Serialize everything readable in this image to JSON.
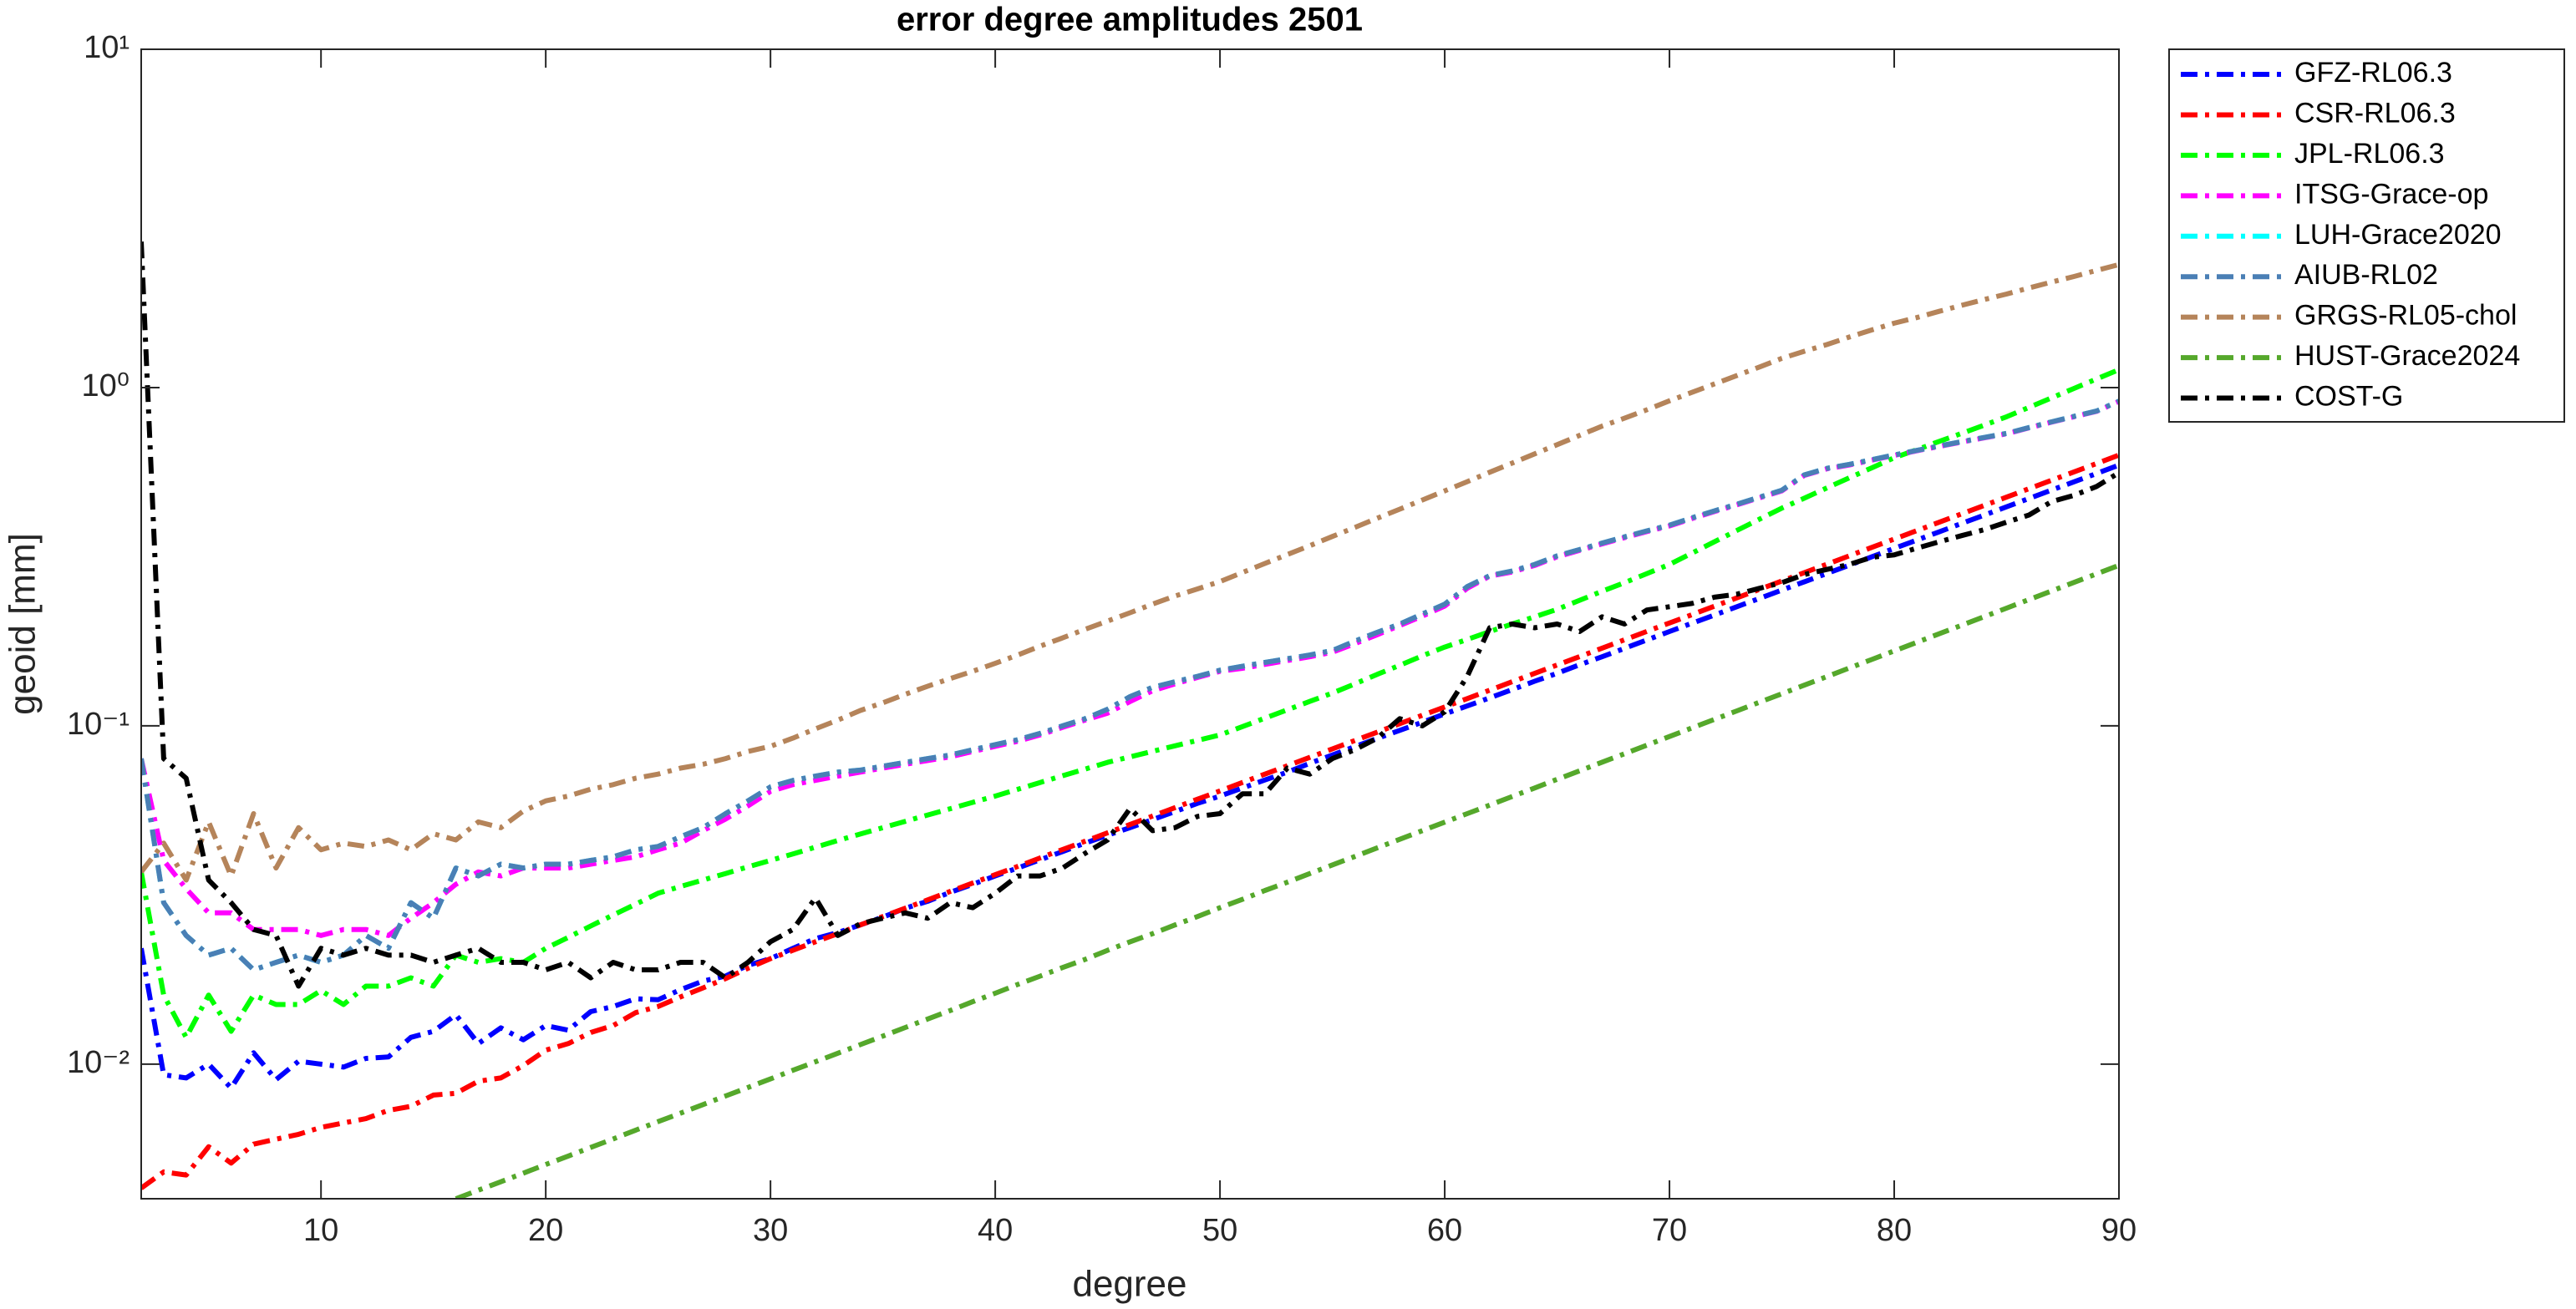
{
  "chart_data": {
    "type": "line",
    "title": "error degree amplitudes 2501",
    "xlabel": "degree",
    "ylabel": "geoid [mm]",
    "log_y": true,
    "legend": "northeastoutside",
    "xlim": [
      2,
      90
    ],
    "ylim": [
      0.004,
      10
    ],
    "xticks": [
      10,
      20,
      30,
      40,
      50,
      60,
      70,
      80,
      90
    ],
    "yticks": [
      {
        "value": 0.01,
        "label": "10⁻²"
      },
      {
        "value": 0.1,
        "label": "10⁻¹"
      },
      {
        "value": 1,
        "label": "10⁰"
      },
      {
        "value": 10,
        "label": "10¹"
      }
    ],
    "x": [
      2,
      3,
      4,
      5,
      6,
      7,
      8,
      9,
      10,
      11,
      12,
      13,
      14,
      15,
      16,
      17,
      18,
      19,
      20,
      21,
      22,
      23,
      24,
      25,
      26,
      27,
      28,
      29,
      30,
      31,
      32,
      33,
      34,
      35,
      36,
      37,
      38,
      39,
      40,
      41,
      42,
      43,
      44,
      45,
      46,
      47,
      48,
      49,
      50,
      51,
      52,
      53,
      54,
      55,
      56,
      57,
      58,
      59,
      60,
      61,
      62,
      63,
      64,
      65,
      66,
      67,
      68,
      69,
      70,
      71,
      72,
      73,
      74,
      75,
      76,
      77,
      78,
      79,
      80,
      81,
      82,
      83,
      84,
      85,
      86,
      87,
      88,
      89,
      90
    ],
    "series": [
      {
        "name": "GFZ-RL06.3",
        "color": "#0000ff",
        "values": [
          0.022,
          0.0093,
          0.0091,
          0.01,
          0.0085,
          0.0108,
          0.009,
          0.0102,
          0.01,
          0.0098,
          0.0104,
          0.0105,
          0.012,
          0.0125,
          0.014,
          0.0115,
          0.0128,
          0.0118,
          0.013,
          0.0126,
          0.0143,
          0.0148,
          0.0156,
          0.0155,
          0.0166,
          0.0176,
          0.0182,
          0.0196,
          0.0205,
          0.022,
          0.0235,
          0.0245,
          0.0258,
          0.0272,
          0.0289,
          0.0303,
          0.0322,
          0.034,
          0.036,
          0.038,
          0.0402,
          0.0425,
          0.045,
          0.0475,
          0.05,
          0.0528,
          0.0558,
          0.059,
          0.062,
          0.0655,
          0.0692,
          0.073,
          0.0775,
          0.082,
          0.0868,
          0.0918,
          0.097,
          0.1025,
          0.1085,
          0.1145,
          0.121,
          0.128,
          0.1355,
          0.143,
          0.1515,
          0.16,
          0.1695,
          0.1795,
          0.19,
          0.201,
          0.2125,
          0.225,
          0.238,
          0.252,
          0.2665,
          0.282,
          0.2985,
          0.316,
          0.3345,
          0.354,
          0.3745,
          0.3965,
          0.4195,
          0.444,
          0.47,
          0.4975,
          0.5265,
          0.557,
          0.59
        ]
      },
      {
        "name": "CSR-RL06.3",
        "color": "#ff0000",
        "values": [
          0.0043,
          0.0048,
          0.0047,
          0.0057,
          0.0051,
          0.0058,
          0.006,
          0.0062,
          0.0065,
          0.0067,
          0.0069,
          0.0073,
          0.0075,
          0.0081,
          0.0082,
          0.0089,
          0.0091,
          0.0099,
          0.011,
          0.0115,
          0.0124,
          0.013,
          0.0142,
          0.0148,
          0.0158,
          0.0168,
          0.0179,
          0.0192,
          0.0205,
          0.0217,
          0.023,
          0.0243,
          0.0258,
          0.0273,
          0.0289,
          0.0306,
          0.0324,
          0.0343,
          0.0363,
          0.0384,
          0.0407,
          0.0431,
          0.0456,
          0.0483,
          0.0511,
          0.0541,
          0.0573,
          0.0607,
          0.0642,
          0.068,
          0.072,
          0.0762,
          0.0807,
          0.0855,
          0.0905,
          0.0958,
          0.1015,
          0.1074,
          0.1137,
          0.1204,
          0.1275,
          0.135,
          0.1429,
          0.1513,
          0.1602,
          0.1697,
          0.1796,
          0.1902,
          0.2014,
          0.2132,
          0.2258,
          0.239,
          0.2531,
          0.268,
          0.2837,
          0.3004,
          0.3181,
          0.3368,
          0.3566,
          0.3775,
          0.3997,
          0.4232,
          0.4481,
          0.4745,
          0.5024,
          0.5319,
          0.5632,
          0.5963,
          0.6314
        ]
      },
      {
        "name": "JPL-RL06.3",
        "color": "#00ff00",
        "values": [
          0.037,
          0.016,
          0.012,
          0.016,
          0.0125,
          0.016,
          0.015,
          0.015,
          0.0165,
          0.015,
          0.017,
          0.017,
          0.018,
          0.017,
          0.021,
          0.02,
          0.0205,
          0.02,
          0.022,
          0.0237,
          0.0256,
          0.0276,
          0.0297,
          0.032,
          0.0335,
          0.035,
          0.0366,
          0.0383,
          0.04,
          0.0418,
          0.0438,
          0.0458,
          0.0479,
          0.05,
          0.0522,
          0.0545,
          0.0569,
          0.0594,
          0.062,
          0.0649,
          0.068,
          0.0712,
          0.0745,
          0.078,
          0.081,
          0.0841,
          0.0873,
          0.0906,
          0.094,
          0.0995,
          0.1054,
          0.1116,
          0.1181,
          0.125,
          0.133,
          0.142,
          0.151,
          0.161,
          0.171,
          0.18,
          0.19,
          0.2,
          0.21,
          0.221,
          0.235,
          0.25,
          0.265,
          0.282,
          0.3,
          0.324,
          0.35,
          0.378,
          0.408,
          0.44,
          0.471,
          0.505,
          0.541,
          0.579,
          0.62,
          0.655,
          0.693,
          0.732,
          0.774,
          0.82,
          0.874,
          0.932,
          0.994,
          1.06,
          1.13
        ]
      },
      {
        "name": "ITSG-Grace-op",
        "color": "#ff00ff",
        "values": [
          0.08,
          0.04,
          0.033,
          0.028,
          0.028,
          0.025,
          0.025,
          0.025,
          0.024,
          0.025,
          0.025,
          0.024,
          0.027,
          0.03,
          0.034,
          0.037,
          0.036,
          0.038,
          0.038,
          0.038,
          0.039,
          0.04,
          0.041,
          0.043,
          0.045,
          0.049,
          0.053,
          0.058,
          0.064,
          0.067,
          0.069,
          0.071,
          0.073,
          0.075,
          0.077,
          0.079,
          0.081,
          0.084,
          0.087,
          0.09,
          0.094,
          0.099,
          0.104,
          0.109,
          0.118,
          0.127,
          0.133,
          0.139,
          0.145,
          0.148,
          0.152,
          0.156,
          0.16,
          0.165,
          0.175,
          0.186,
          0.198,
          0.211,
          0.226,
          0.255,
          0.277,
          0.285,
          0.298,
          0.316,
          0.33,
          0.345,
          0.36,
          0.375,
          0.39,
          0.41,
          0.43,
          0.45,
          0.472,
          0.495,
          0.55,
          0.575,
          0.59,
          0.61,
          0.63,
          0.65,
          0.67,
          0.69,
          0.71,
          0.73,
          0.76,
          0.79,
          0.82,
          0.85,
          0.91
        ]
      },
      {
        "name": "LUH-Grace2020",
        "color": "#00ffff",
        "values": [
          0.08,
          0.03,
          0.024,
          0.021,
          0.022,
          0.019,
          0.02,
          0.021,
          0.02,
          0.021,
          0.024,
          0.022,
          0.03,
          0.027,
          0.038,
          0.036,
          0.039,
          0.038,
          0.039,
          0.039,
          0.04,
          0.041,
          0.043,
          0.044,
          0.047,
          0.05,
          0.055,
          0.06,
          0.066,
          0.069,
          0.071,
          0.073,
          0.074,
          0.076,
          0.078,
          0.08,
          0.082,
          0.085,
          0.088,
          0.091,
          0.095,
          0.1,
          0.105,
          0.112,
          0.122,
          0.13,
          0.135,
          0.14,
          0.146,
          0.15,
          0.154,
          0.158,
          0.162,
          0.167,
          0.178,
          0.189,
          0.2,
          0.214,
          0.229,
          0.258,
          0.278,
          0.287,
          0.3,
          0.318,
          0.332,
          0.347,
          0.362,
          0.377,
          0.392,
          0.412,
          0.432,
          0.452,
          0.474,
          0.497,
          0.552,
          0.577,
          0.593,
          0.612,
          0.632,
          0.652,
          0.672,
          0.692,
          0.712,
          0.732,
          0.762,
          0.792,
          0.822,
          0.852,
          0.912
        ]
      },
      {
        "name": "AIUB-RL02",
        "color": "#4a7fb5",
        "values": [
          0.08,
          0.03,
          0.024,
          0.021,
          0.022,
          0.019,
          0.02,
          0.021,
          0.02,
          0.021,
          0.024,
          0.022,
          0.03,
          0.027,
          0.038,
          0.036,
          0.039,
          0.038,
          0.039,
          0.039,
          0.04,
          0.041,
          0.043,
          0.044,
          0.047,
          0.05,
          0.055,
          0.06,
          0.066,
          0.069,
          0.071,
          0.073,
          0.074,
          0.076,
          0.078,
          0.08,
          0.082,
          0.085,
          0.088,
          0.091,
          0.095,
          0.1,
          0.105,
          0.112,
          0.122,
          0.13,
          0.135,
          0.14,
          0.146,
          0.15,
          0.154,
          0.158,
          0.162,
          0.167,
          0.178,
          0.189,
          0.2,
          0.214,
          0.229,
          0.258,
          0.278,
          0.287,
          0.3,
          0.318,
          0.332,
          0.347,
          0.362,
          0.377,
          0.392,
          0.412,
          0.432,
          0.452,
          0.474,
          0.497,
          0.552,
          0.577,
          0.593,
          0.612,
          0.632,
          0.652,
          0.672,
          0.692,
          0.712,
          0.732,
          0.762,
          0.792,
          0.822,
          0.852,
          0.912
        ]
      },
      {
        "name": "GRGS-RL05-chol",
        "color": "#b5845a",
        "values": [
          0.037,
          0.045,
          0.035,
          0.052,
          0.036,
          0.055,
          0.038,
          0.05,
          0.043,
          0.045,
          0.044,
          0.046,
          0.043,
          0.048,
          0.046,
          0.052,
          0.05,
          0.056,
          0.06,
          0.062,
          0.065,
          0.067,
          0.07,
          0.072,
          0.075,
          0.077,
          0.08,
          0.084,
          0.087,
          0.092,
          0.098,
          0.104,
          0.111,
          0.117,
          0.124,
          0.131,
          0.138,
          0.145,
          0.153,
          0.162,
          0.172,
          0.182,
          0.193,
          0.204,
          0.216,
          0.229,
          0.242,
          0.254,
          0.267,
          0.284,
          0.302,
          0.321,
          0.341,
          0.363,
          0.386,
          0.411,
          0.437,
          0.465,
          0.495,
          0.527,
          0.562,
          0.598,
          0.637,
          0.678,
          0.722,
          0.769,
          0.812,
          0.86,
          0.914,
          0.968,
          1.025,
          1.085,
          1.15,
          1.22,
          1.28,
          1.34,
          1.41,
          1.48,
          1.55,
          1.61,
          1.68,
          1.75,
          1.82,
          1.89,
          1.97,
          2.05,
          2.13,
          2.22,
          2.31
        ]
      },
      {
        "name": "HUST-Grace2024",
        "color": "#55a82b",
        "values": [
          null,
          null,
          null,
          null,
          null,
          null,
          null,
          null,
          null,
          null,
          null,
          null,
          null,
          null,
          0.004,
          0.00424,
          0.00449,
          0.00476,
          0.00505,
          0.00535,
          0.00567,
          0.00601,
          0.00638,
          0.00676,
          0.00716,
          0.00759,
          0.00805,
          0.00853,
          0.00904,
          0.00959,
          0.01016,
          0.01077,
          0.01142,
          0.0121,
          0.01283,
          0.0136,
          0.0144,
          0.0153,
          0.0162,
          0.0172,
          0.0182,
          0.0193,
          0.0204,
          0.0217,
          0.023,
          0.0243,
          0.0258,
          0.0273,
          0.029,
          0.0307,
          0.0326,
          0.0345,
          0.0366,
          0.0388,
          0.0411,
          0.0436,
          0.0462,
          0.049,
          0.0519,
          0.055,
          0.0583,
          0.0618,
          0.0655,
          0.0695,
          0.0736,
          0.0781,
          0.0827,
          0.0877,
          0.093,
          0.0986,
          0.1045,
          0.1107,
          0.1174,
          0.1244,
          0.1319,
          0.1398,
          0.1482,
          0.1571,
          0.1665,
          0.1765,
          0.1871,
          0.1983,
          0.2102,
          0.2228,
          0.2362,
          0.2504,
          0.2654,
          0.2813,
          0.2982
        ]
      },
      {
        "name": "COST-G",
        "color": "#000000",
        "values": [
          2.7,
          0.08,
          0.07,
          0.035,
          0.03,
          0.025,
          0.024,
          0.017,
          0.022,
          0.021,
          0.022,
          0.021,
          0.021,
          0.02,
          0.021,
          0.022,
          0.02,
          0.02,
          0.019,
          0.02,
          0.018,
          0.02,
          0.019,
          0.019,
          0.02,
          0.02,
          0.018,
          0.02,
          0.023,
          0.025,
          0.031,
          0.024,
          0.026,
          0.027,
          0.028,
          0.027,
          0.03,
          0.029,
          0.032,
          0.036,
          0.036,
          0.038,
          0.042,
          0.046,
          0.057,
          0.049,
          0.05,
          0.054,
          0.055,
          0.063,
          0.063,
          0.075,
          0.072,
          0.08,
          0.085,
          0.092,
          0.105,
          0.1,
          0.11,
          0.14,
          0.195,
          0.2,
          0.195,
          0.2,
          0.19,
          0.21,
          0.2,
          0.22,
          0.225,
          0.23,
          0.24,
          0.245,
          0.255,
          0.265,
          0.28,
          0.29,
          0.3,
          0.315,
          0.32,
          0.335,
          0.35,
          0.365,
          0.38,
          0.4,
          0.42,
          0.46,
          0.48,
          0.51,
          0.56
        ]
      }
    ]
  }
}
